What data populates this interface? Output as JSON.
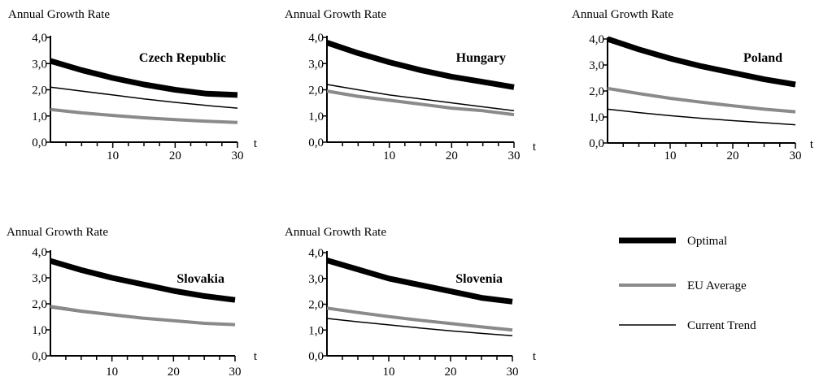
{
  "y_axis_label": "Annual Growth Rate",
  "x_axis_label": "t",
  "legend": [
    {
      "label": "Optimal",
      "color": "#000000",
      "width": 7
    },
    {
      "label": "EU Average",
      "color": "#8a8a8a",
      "width": 4
    },
    {
      "label": "Current Trend",
      "color": "#000000",
      "width": 1.5
    }
  ],
  "chart_data": [
    {
      "type": "line",
      "title": "Czech Republic",
      "xlabel": "t",
      "ylabel": "Annual Growth Rate",
      "xlim": [
        0,
        30
      ],
      "ylim": [
        0,
        4
      ],
      "yticks": [
        "0,0",
        "1,0",
        "2,0",
        "3,0",
        "4,0"
      ],
      "xticks": [
        "10",
        "20",
        "30"
      ],
      "x": [
        0,
        5,
        10,
        15,
        20,
        25,
        30
      ],
      "series": [
        {
          "name": "Optimal",
          "values": [
            3.1,
            2.75,
            2.45,
            2.2,
            2.0,
            1.85,
            1.8
          ]
        },
        {
          "name": "EU Average",
          "values": [
            1.25,
            1.12,
            1.02,
            0.93,
            0.86,
            0.8,
            0.75
          ]
        },
        {
          "name": "Current Trend",
          "values": [
            2.1,
            1.95,
            1.8,
            1.65,
            1.52,
            1.4,
            1.3
          ]
        }
      ]
    },
    {
      "type": "line",
      "title": "Hungary",
      "xlabel": "t",
      "ylabel": "Annual Growth Rate",
      "xlim": [
        0,
        30
      ],
      "ylim": [
        0,
        4
      ],
      "yticks": [
        "0,0",
        "1,0",
        "2,0",
        "3,0",
        "4,0"
      ],
      "xticks": [
        "10",
        "20",
        "30"
      ],
      "x": [
        0,
        5,
        10,
        15,
        20,
        25,
        30
      ],
      "series": [
        {
          "name": "Optimal",
          "values": [
            3.8,
            3.4,
            3.05,
            2.75,
            2.5,
            2.3,
            2.1
          ]
        },
        {
          "name": "EU Average",
          "values": [
            1.95,
            1.75,
            1.6,
            1.45,
            1.3,
            1.2,
            1.05
          ]
        },
        {
          "name": "Current Trend",
          "values": [
            2.2,
            2.0,
            1.8,
            1.65,
            1.5,
            1.35,
            1.2
          ]
        }
      ]
    },
    {
      "type": "line",
      "title": "Poland",
      "xlabel": "t",
      "ylabel": "Annual Growth Rate",
      "xlim": [
        0,
        30
      ],
      "ylim": [
        0,
        4
      ],
      "yticks": [
        "0,0",
        "1,0",
        "2,0",
        "3,0",
        "4,0"
      ],
      "xticks": [
        "10",
        "20",
        "30"
      ],
      "x": [
        0,
        5,
        10,
        15,
        20,
        25,
        30
      ],
      "series": [
        {
          "name": "Optimal",
          "values": [
            4.0,
            3.6,
            3.25,
            2.95,
            2.7,
            2.45,
            2.25
          ]
        },
        {
          "name": "EU Average",
          "values": [
            2.1,
            1.9,
            1.72,
            1.57,
            1.43,
            1.3,
            1.2
          ]
        },
        {
          "name": "Current Trend",
          "values": [
            1.3,
            1.17,
            1.05,
            0.95,
            0.86,
            0.78,
            0.7
          ]
        }
      ]
    },
    {
      "type": "line",
      "title": "Slovakia",
      "xlabel": "t",
      "ylabel": "Annual Growth Rate",
      "xlim": [
        0,
        30
      ],
      "ylim": [
        0,
        4
      ],
      "yticks": [
        "0,0",
        "1,0",
        "2,0",
        "3,0",
        "4,0"
      ],
      "xticks": [
        "10",
        "20",
        "30"
      ],
      "x": [
        0,
        5,
        10,
        15,
        20,
        25,
        30
      ],
      "series": [
        {
          "name": "Optimal",
          "values": [
            3.65,
            3.3,
            3.0,
            2.75,
            2.5,
            2.3,
            2.15
          ]
        },
        {
          "name": "EU Average",
          "values": [
            1.9,
            1.72,
            1.58,
            1.45,
            1.35,
            1.25,
            1.2
          ]
        },
        {
          "name": "Current Trend",
          "values": [
            1.85,
            1.68,
            1.55,
            1.43,
            1.33,
            1.25,
            1.2
          ]
        }
      ]
    },
    {
      "type": "line",
      "title": "Slovenia",
      "xlabel": "t",
      "ylabel": "Annual Growth Rate",
      "xlim": [
        0,
        30
      ],
      "ylim": [
        0,
        4
      ],
      "yticks": [
        "0,0",
        "1,0",
        "2,0",
        "3,0",
        "4,0"
      ],
      "xticks": [
        "10",
        "20",
        "30"
      ],
      "x": [
        0,
        5,
        10,
        15,
        20,
        25,
        30
      ],
      "series": [
        {
          "name": "Optimal",
          "values": [
            3.7,
            3.35,
            3.0,
            2.75,
            2.5,
            2.25,
            2.1
          ]
        },
        {
          "name": "EU Average",
          "values": [
            1.85,
            1.68,
            1.52,
            1.38,
            1.25,
            1.12,
            1.0
          ]
        },
        {
          "name": "Current Trend",
          "values": [
            1.45,
            1.32,
            1.2,
            1.08,
            0.97,
            0.87,
            0.78
          ]
        }
      ]
    }
  ]
}
